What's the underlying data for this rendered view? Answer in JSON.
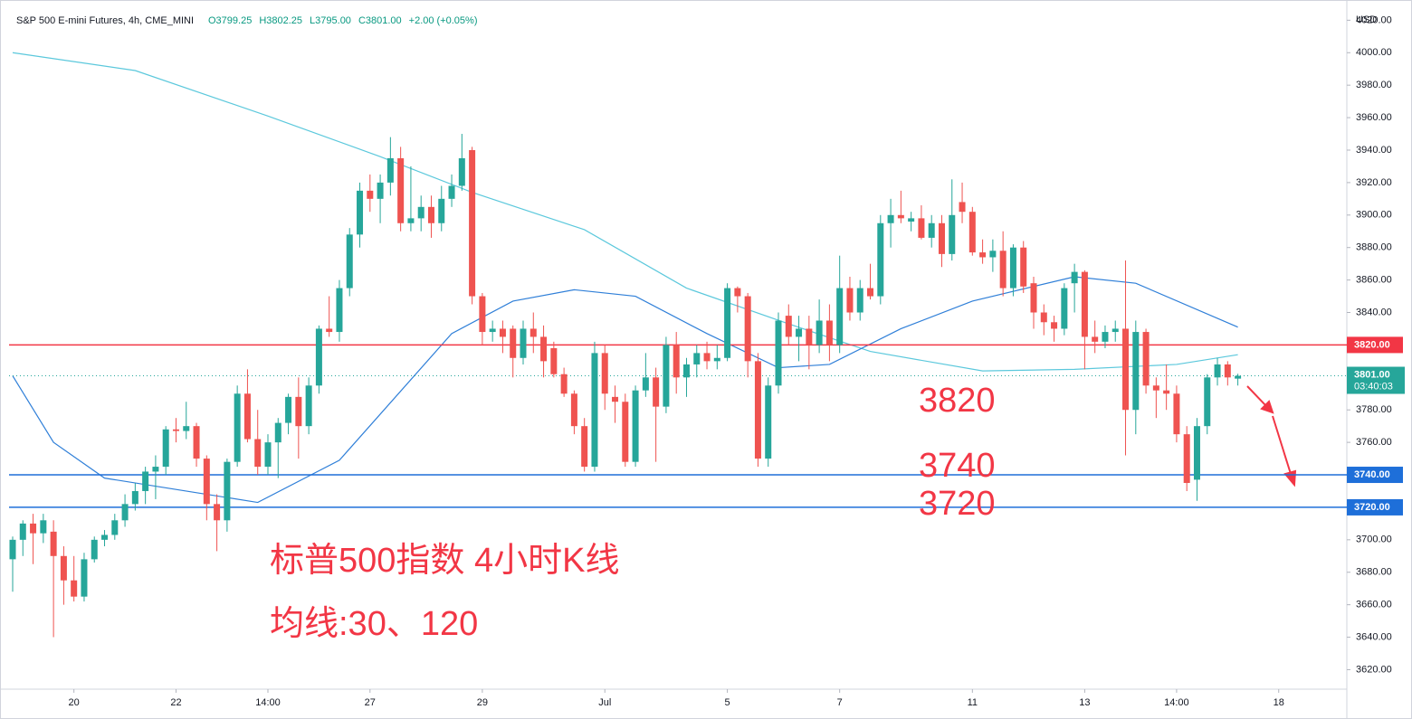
{
  "header": {
    "symbol": "S&P 500 E-mini Futures, 4h, CME_MINI",
    "ohlc_labels": [
      "O3799.25",
      "H3802.25",
      "L3795.00",
      "C3801.00"
    ],
    "change": "+2.00 (+0.05%)"
  },
  "chart_data": {
    "type": "candlestick",
    "currency": "USD",
    "up_color": "#26a69a",
    "down_color": "#ef5350",
    "candles": [
      [
        3688,
        3702,
        3668,
        3700
      ],
      [
        3700,
        3712,
        3690,
        3710
      ],
      [
        3710,
        3716,
        3685,
        3704
      ],
      [
        3704,
        3716,
        3698,
        3712
      ],
      [
        3705,
        3712,
        3640,
        3690
      ],
      [
        3690,
        3696,
        3660,
        3675
      ],
      [
        3675,
        3690,
        3662,
        3665
      ],
      [
        3665,
        3692,
        3662,
        3688
      ],
      [
        3688,
        3702,
        3686,
        3700
      ],
      [
        3700,
        3706,
        3696,
        3703
      ],
      [
        3703,
        3716,
        3700,
        3712
      ],
      [
        3712,
        3728,
        3708,
        3722
      ],
      [
        3722,
        3735,
        3718,
        3730
      ],
      [
        3730,
        3745,
        3722,
        3742
      ],
      [
        3742,
        3752,
        3725,
        3745
      ],
      [
        3745,
        3770,
        3740,
        3768
      ],
      [
        3768,
        3775,
        3760,
        3767
      ],
      [
        3767,
        3785,
        3762,
        3770
      ],
      [
        3770,
        3772,
        3745,
        3750
      ],
      [
        3750,
        3752,
        3712,
        3722
      ],
      [
        3722,
        3728,
        3693,
        3712
      ],
      [
        3712,
        3750,
        3705,
        3748
      ],
      [
        3748,
        3795,
        3745,
        3790
      ],
      [
        3790,
        3805,
        3760,
        3762
      ],
      [
        3762,
        3780,
        3740,
        3745
      ],
      [
        3745,
        3765,
        3740,
        3760
      ],
      [
        3760,
        3775,
        3738,
        3772
      ],
      [
        3772,
        3790,
        3765,
        3788
      ],
      [
        3788,
        3800,
        3750,
        3770
      ],
      [
        3770,
        3800,
        3765,
        3795
      ],
      [
        3795,
        3832,
        3790,
        3830
      ],
      [
        3830,
        3850,
        3825,
        3828
      ],
      [
        3828,
        3860,
        3822,
        3855
      ],
      [
        3855,
        3892,
        3850,
        3888
      ],
      [
        3888,
        3920,
        3880,
        3915
      ],
      [
        3915,
        3925,
        3902,
        3910
      ],
      [
        3910,
        3925,
        3895,
        3920
      ],
      [
        3920,
        3948,
        3912,
        3935
      ],
      [
        3935,
        3942,
        3890,
        3895
      ],
      [
        3895,
        3930,
        3890,
        3898
      ],
      [
        3898,
        3912,
        3890,
        3905
      ],
      [
        3905,
        3912,
        3886,
        3895
      ],
      [
        3895,
        3918,
        3890,
        3910
      ],
      [
        3910,
        3925,
        3905,
        3918
      ],
      [
        3918,
        3950,
        3915,
        3935
      ],
      [
        3940,
        3942,
        3845,
        3850
      ],
      [
        3850,
        3852,
        3820,
        3828
      ],
      [
        3828,
        3835,
        3822,
        3830
      ],
      [
        3830,
        3835,
        3815,
        3825
      ],
      [
        3830,
        3832,
        3800,
        3812
      ],
      [
        3812,
        3835,
        3808,
        3830
      ],
      [
        3830,
        3840,
        3815,
        3825
      ],
      [
        3825,
        3832,
        3800,
        3810
      ],
      [
        3818,
        3822,
        3800,
        3802
      ],
      [
        3802,
        3806,
        3788,
        3790
      ],
      [
        3790,
        3792,
        3765,
        3770
      ],
      [
        3770,
        3775,
        3742,
        3745
      ],
      [
        3745,
        3822,
        3742,
        3815
      ],
      [
        3815,
        3820,
        3780,
        3790
      ],
      [
        3788,
        3795,
        3772,
        3785
      ],
      [
        3785,
        3790,
        3745,
        3748
      ],
      [
        3748,
        3795,
        3745,
        3792
      ],
      [
        3792,
        3815,
        3788,
        3800
      ],
      [
        3800,
        3806,
        3748,
        3782
      ],
      [
        3782,
        3825,
        3778,
        3820
      ],
      [
        3820,
        3828,
        3790,
        3800
      ],
      [
        3800,
        3812,
        3788,
        3808
      ],
      [
        3808,
        3820,
        3800,
        3815
      ],
      [
        3815,
        3822,
        3805,
        3810
      ],
      [
        3810,
        3820,
        3805,
        3812
      ],
      [
        3812,
        3858,
        3810,
        3855
      ],
      [
        3855,
        3856,
        3840,
        3850
      ],
      [
        3850,
        3852,
        3800,
        3810
      ],
      [
        3810,
        3815,
        3745,
        3750
      ],
      [
        3750,
        3800,
        3745,
        3795
      ],
      [
        3795,
        3840,
        3790,
        3835
      ],
      [
        3838,
        3845,
        3820,
        3825
      ],
      [
        3825,
        3838,
        3810,
        3830
      ],
      [
        3830,
        3838,
        3805,
        3820
      ],
      [
        3820,
        3848,
        3815,
        3835
      ],
      [
        3835,
        3845,
        3810,
        3820
      ],
      [
        3820,
        3875,
        3815,
        3855
      ],
      [
        3855,
        3862,
        3835,
        3840
      ],
      [
        3840,
        3860,
        3835,
        3855
      ],
      [
        3855,
        3870,
        3848,
        3850
      ],
      [
        3850,
        3900,
        3845,
        3895
      ],
      [
        3895,
        3910,
        3880,
        3900
      ],
      [
        3900,
        3915,
        3895,
        3898
      ],
      [
        3896,
        3902,
        3890,
        3898
      ],
      [
        3898,
        3906,
        3885,
        3886
      ],
      [
        3886,
        3900,
        3880,
        3895
      ],
      [
        3895,
        3900,
        3868,
        3876
      ],
      [
        3876,
        3922,
        3872,
        3900
      ],
      [
        3908,
        3920,
        3895,
        3902
      ],
      [
        3902,
        3905,
        3875,
        3877
      ],
      [
        3877,
        3885,
        3870,
        3874
      ],
      [
        3874,
        3885,
        3865,
        3878
      ],
      [
        3878,
        3890,
        3850,
        3855
      ],
      [
        3855,
        3882,
        3850,
        3880
      ],
      [
        3880,
        3884,
        3852,
        3856
      ],
      [
        3858,
        3862,
        3830,
        3840
      ],
      [
        3840,
        3845,
        3826,
        3834
      ],
      [
        3834,
        3838,
        3822,
        3830
      ],
      [
        3830,
        3858,
        3826,
        3855
      ],
      [
        3858,
        3870,
        3840,
        3865
      ],
      [
        3865,
        3866,
        3805,
        3825
      ],
      [
        3825,
        3835,
        3815,
        3822
      ],
      [
        3822,
        3832,
        3818,
        3828
      ],
      [
        3828,
        3835,
        3822,
        3830
      ],
      [
        3830,
        3872,
        3752,
        3780
      ],
      [
        3780,
        3835,
        3765,
        3828
      ],
      [
        3828,
        3830,
        3790,
        3795
      ],
      [
        3795,
        3800,
        3775,
        3792
      ],
      [
        3792,
        3808,
        3780,
        3790
      ],
      [
        3790,
        3795,
        3760,
        3765
      ],
      [
        3765,
        3770,
        3730,
        3735
      ],
      [
        3737,
        3775,
        3724,
        3770
      ],
      [
        3770,
        3802,
        3765,
        3800
      ],
      [
        3800,
        3812,
        3795,
        3808
      ],
      [
        3808,
        3810,
        3795,
        3800
      ],
      [
        3799.25,
        3802.25,
        3795,
        3801
      ]
    ],
    "lines": [
      {
        "color": "#5bc8dc",
        "x": [
          0,
          12,
          25,
          36,
          45,
          56,
          66,
          76,
          84,
          95,
          104,
          114,
          120
        ],
        "values": [
          4000,
          3989,
          3961,
          3936,
          3914,
          3891,
          3855,
          3833,
          3816,
          3804,
          3805,
          3808,
          3814
        ]
      },
      {
        "color": "#2f7fd8",
        "x": [
          0,
          4,
          9,
          16,
          24,
          32,
          43,
          49,
          55,
          61,
          68,
          75,
          80,
          87,
          94,
          104,
          110,
          120
        ],
        "values": [
          3801,
          3760,
          3738,
          3731,
          3723,
          3749,
          3827,
          3847,
          3854,
          3850,
          3827,
          3806,
          3808,
          3830,
          3847,
          3862,
          3858,
          3831
        ]
      }
    ],
    "xlim": [
      -0.5,
      130.5
    ],
    "xticks": [
      {
        "value": 6,
        "label": "20"
      },
      {
        "value": 16,
        "label": "22"
      },
      {
        "value": 25,
        "label": "14:00"
      },
      {
        "value": 35,
        "label": "27"
      },
      {
        "value": 46,
        "label": "29"
      },
      {
        "value": 58,
        "label": "Jul"
      },
      {
        "value": 70,
        "label": "5"
      },
      {
        "value": 81,
        "label": "7"
      },
      {
        "value": 94,
        "label": "11"
      },
      {
        "value": 105,
        "label": "13"
      },
      {
        "value": 114,
        "label": "14:00"
      },
      {
        "value": 124,
        "label": "18"
      }
    ],
    "ylim": [
      3608,
      4028
    ],
    "yticks": [
      {
        "value": 3620,
        "label": "3620.00"
      },
      {
        "value": 3640,
        "label": "3640.00"
      },
      {
        "value": 3660,
        "label": "3660.00"
      },
      {
        "value": 3680,
        "label": "3680.00"
      },
      {
        "value": 3700,
        "label": "3700.00"
      },
      {
        "value": 3720,
        "label": "3720.00"
      },
      {
        "value": 3740,
        "label": "3740.00"
      },
      {
        "value": 3760,
        "label": "3760.00"
      },
      {
        "value": 3780,
        "label": "3780.00"
      },
      {
        "value": 3800,
        "label": "3800.00"
      },
      {
        "value": 3820,
        "label": "3820.00"
      },
      {
        "value": 3840,
        "label": "3840.00"
      },
      {
        "value": 3860,
        "label": "3860.00"
      },
      {
        "value": 3880,
        "label": "3880.00"
      },
      {
        "value": 3900,
        "label": "3900.00"
      },
      {
        "value": 3920,
        "label": "3920.00"
      },
      {
        "value": 3940,
        "label": "3940.00"
      },
      {
        "value": 3960,
        "label": "3960.00"
      },
      {
        "value": 3980,
        "label": "3980.00"
      },
      {
        "value": 4000,
        "label": "4000.00"
      },
      {
        "value": 4020,
        "label": "4020.00"
      }
    ],
    "levels": [
      {
        "value": 3820,
        "label": "3820.00",
        "color": "#f23645"
      },
      {
        "value": 3740,
        "label": "3740.00",
        "color": "#1e6fd9"
      },
      {
        "value": 3720,
        "label": "3720.00",
        "color": "#1e6fd9"
      }
    ],
    "last": {
      "value": 3801,
      "label": "3801.00",
      "countdown": "03:40:03"
    },
    "annotations": [
      "3820",
      "3740",
      "3720",
      "标普500指数 4小时K线",
      "均线:30、120"
    ]
  }
}
